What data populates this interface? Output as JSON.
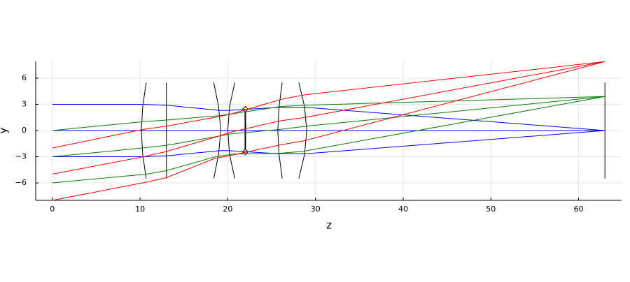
{
  "chart_data": {
    "type": "line",
    "xlabel": "z",
    "ylabel": "y",
    "xlim": [
      -1.9,
      64.9
    ],
    "ylim": [
      -8,
      7.92
    ],
    "xticks": [
      0,
      10,
      20,
      30,
      40,
      50,
      60
    ],
    "yticks": [
      {
        "value": -6,
        "label": "−6"
      },
      {
        "value": -3,
        "label": "−3"
      },
      0,
      3,
      6
    ],
    "grid": true,
    "series": [
      {
        "color": "#000000",
        "x": [
          10.7,
          10.3,
          10.15,
          10.3,
          10.7
        ],
        "values": [
          5.5,
          2.75,
          0,
          -2.75,
          -5.5
        ]
      },
      {
        "color": "#000000",
        "x": [
          13,
          13
        ],
        "values": [
          5.5,
          -5.5
        ]
      },
      {
        "color": "#000000",
        "x": [
          18.4,
          18.95,
          19.2,
          18.95,
          18.4
        ],
        "values": [
          5.5,
          2.75,
          0,
          -2.75,
          -5.5
        ]
      },
      {
        "color": "#000000",
        "x": [
          20.8,
          20.2,
          20.0,
          20.2,
          20.8
        ],
        "values": [
          5.5,
          2.75,
          0,
          -2.75,
          -5.5
        ]
      },
      {
        "color": "#000000",
        "x": [
          26.2,
          25.85,
          25.7,
          25.85,
          26.2
        ],
        "values": [
          5.5,
          2.75,
          0,
          -2.75,
          -5.5
        ]
      },
      {
        "color": "#000000",
        "x": [
          28.1,
          28.75,
          29.0,
          28.75,
          28.1
        ],
        "values": [
          5.5,
          2.75,
          0,
          -2.75,
          -5.5
        ]
      },
      {
        "color": "#000000",
        "x": [
          63,
          63
        ],
        "values": [
          5.5,
          -5.5
        ]
      },
      {
        "color": "#000000",
        "width": 2,
        "marker": "diamond",
        "x": [
          22,
          22
        ],
        "values": [
          2.45,
          -2.45
        ]
      },
      {
        "color": "#0000ff",
        "x": [
          0,
          63
        ],
        "values": [
          0,
          0
        ]
      },
      {
        "color": "#0000ff",
        "x": [
          0,
          10.15,
          13,
          19.2,
          20.0,
          25.7,
          29,
          63
        ],
        "values": [
          3,
          3,
          2.9,
          2.3,
          2.3,
          2.65,
          2.65,
          0
        ]
      },
      {
        "color": "#0000ff",
        "x": [
          0,
          10.15,
          13,
          19.2,
          20.0,
          25.7,
          29,
          63
        ],
        "values": [
          -3,
          -3,
          -2.9,
          -2.3,
          -2.3,
          -2.65,
          -2.65,
          0
        ]
      },
      {
        "color": "#008000",
        "x": [
          0,
          10.2,
          13,
          19,
          20.4,
          26,
          28.9,
          63
        ],
        "values": [
          0,
          1.0,
          1.2,
          1.7,
          1.9,
          2.75,
          2.9,
          3.9
        ]
      },
      {
        "color": "#008000",
        "x": [
          0,
          10.3,
          13,
          19.2,
          20.2,
          25.7,
          29,
          63
        ],
        "values": [
          -3,
          -2.0,
          -1.7,
          -0.6,
          -0.4,
          0.1,
          0.5,
          3.9
        ]
      },
      {
        "color": "#008000",
        "x": [
          0,
          10.7,
          13,
          18.6,
          20.6,
          26,
          28.5,
          63
        ],
        "values": [
          -6,
          -5.0,
          -4.6,
          -3.0,
          -2.7,
          -2.6,
          -2.4,
          3.9
        ]
      },
      {
        "color": "#ff0000",
        "x": [
          0,
          10.2,
          13,
          19,
          20.4,
          26.2,
          28.8,
          63
        ],
        "values": [
          -2,
          0.1,
          0.5,
          1.6,
          1.9,
          3.6,
          4.1,
          7.9
        ]
      },
      {
        "color": "#ff0000",
        "x": [
          0,
          10.4,
          13,
          19.1,
          20.3,
          25.9,
          28.8,
          63
        ],
        "values": [
          -5,
          -3.0,
          -2.4,
          -0.6,
          -0.2,
          1.1,
          1.5,
          7.9
        ]
      },
      {
        "color": "#ff0000",
        "x": [
          0,
          10.8,
          13,
          18.5,
          20.6,
          26.2,
          28.6,
          63
        ],
        "values": [
          -8,
          -5.9,
          -5.4,
          -3.2,
          -2.8,
          -1.6,
          -1.2,
          7.9
        ]
      }
    ]
  }
}
